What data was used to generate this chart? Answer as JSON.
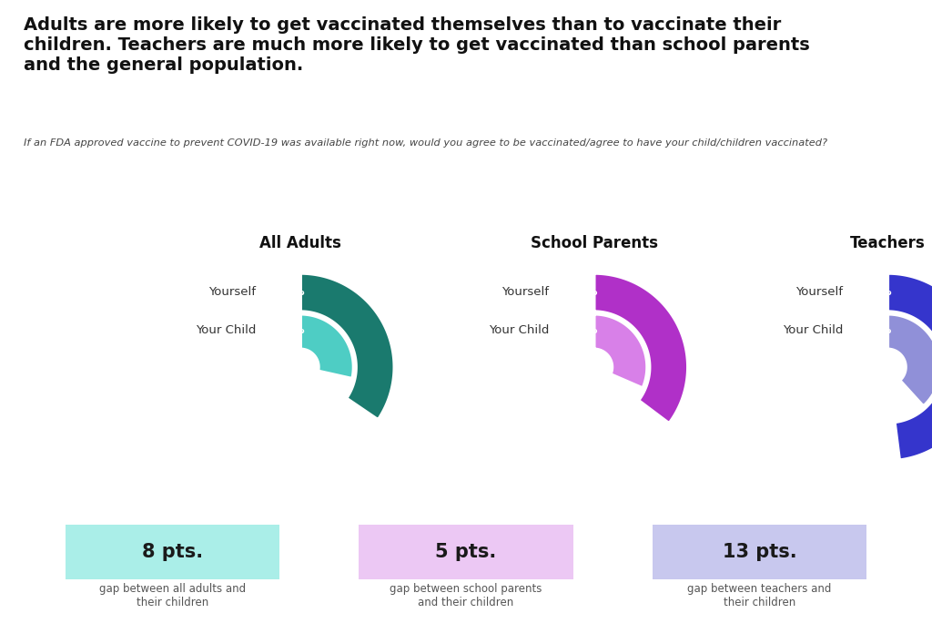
{
  "title": "Adults are more likely to get vaccinated themselves than to vaccinate their\nchildren. Teachers are much more likely to get vaccinated than school parents\nand the general population.",
  "subtitle": "If an FDA approved vaccine to prevent COVID-19 was available right now, would you agree to be vaccinated/agree to have your child/children vaccinated?",
  "groups": [
    {
      "name": "All Adults",
      "yourself_pct": 46,
      "child_pct": 38,
      "gap": "8 pts.",
      "gap_text": "gap between all adults and\ntheir children",
      "outer_color": "#1a7a6e",
      "inner_color": "#4ecdc4",
      "box_color": "#aaeee8"
    },
    {
      "name": "School Parents",
      "yourself_pct": 47,
      "child_pct": 42,
      "gap": "5 pts.",
      "gap_text": "gap between school parents\nand their children",
      "outer_color": "#b030c8",
      "inner_color": "#d880e8",
      "box_color": "#ecc8f4"
    },
    {
      "name": "Teachers",
      "yourself_pct": 64,
      "child_pct": 51,
      "gap": "13 pts.",
      "gap_text": "gap between teachers and\ntheir children",
      "outer_color": "#3535cc",
      "inner_color": "#9090d8",
      "box_color": "#c8c8ee"
    }
  ],
  "bg_color": "#ffffff"
}
